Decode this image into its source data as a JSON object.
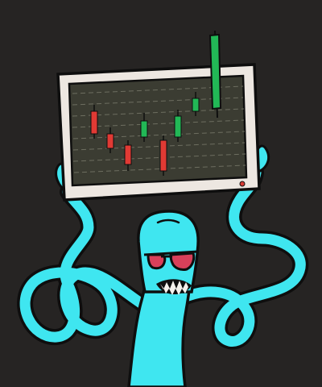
{
  "illustration": {
    "subject": "cyan-creature-holding-trading-monitor",
    "colors": {
      "background": "#262423",
      "creature": "#3FE6F0",
      "outline": "#0E0E0E",
      "sunglasses": "#D8405A",
      "monitor_frame": "#EDE7E1",
      "screen": "#3B3C32",
      "screen_grid": "#6D6E60",
      "bull_candle": "#22B856",
      "bear_candle": "#E13A34",
      "power_light": "#D73A34"
    },
    "icons": [
      "monitor-icon",
      "candlestick-chart-icon",
      "sunglasses-icon",
      "teeth-icon"
    ]
  }
}
